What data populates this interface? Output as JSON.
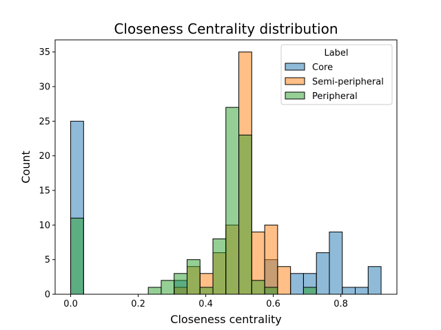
{
  "chart_data": {
    "type": "bar",
    "title": "Closeness Centrality distribution",
    "xlabel": "Closeness centrality",
    "ylabel": "Count",
    "xlim": [
      -0.046,
      0.966
    ],
    "ylim": [
      0,
      36.75
    ],
    "xticks": [
      "0.0",
      "0.2",
      "0.4",
      "0.6",
      "0.8"
    ],
    "yticks": [
      "0",
      "5",
      "10",
      "15",
      "20",
      "25",
      "30",
      "35"
    ],
    "legend_title": "Label",
    "legend_placement": "top-right",
    "bin_start": 0.0,
    "bin_width": 0.0383,
    "bin_count": 24,
    "series": [
      {
        "name": "Core",
        "color": "#1f77b4",
        "values": [
          25,
          0,
          0,
          0,
          0,
          0,
          0,
          0,
          2,
          0,
          0,
          0,
          0,
          0,
          0,
          5,
          0,
          3,
          3,
          6,
          9,
          1,
          1,
          4
        ]
      },
      {
        "name": "Semi-peripheral",
        "color": "#ff7f0e",
        "values": [
          0,
          0,
          0,
          0,
          0,
          0,
          0,
          0,
          1,
          4,
          3,
          6,
          10,
          35,
          9,
          10,
          4,
          0,
          0,
          0,
          0,
          0,
          0,
          0
        ]
      },
      {
        "name": "Peripheral",
        "color": "#2ca02c",
        "values": [
          11,
          0,
          0,
          0,
          0,
          0,
          1,
          2,
          3,
          5,
          1,
          8,
          27,
          23,
          2,
          1,
          0,
          0,
          1,
          0,
          0,
          0,
          0,
          0
        ]
      }
    ]
  }
}
